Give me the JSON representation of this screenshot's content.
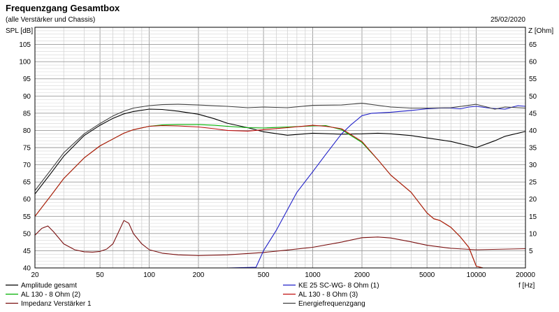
{
  "chart_data": {
    "type": "line",
    "title": "Frequenzgang Gesamtbox",
    "subtitle": "(alle Verstärker und Chassis)",
    "date": "25/02/2020",
    "ylabel": "SPL [dB]",
    "y2label": "Z [Ohm]",
    "xlabel": "f [Hz]",
    "xscale": "log",
    "xlim": [
      20,
      20000
    ],
    "ylim": [
      40,
      110
    ],
    "y2lim": [
      0,
      70
    ],
    "grid": true,
    "x_ticks": [
      20,
      50,
      100,
      200,
      500,
      1000,
      2000,
      5000,
      10000,
      20000
    ],
    "x_tick_labels": [
      "20",
      "50",
      "100",
      "200",
      "500",
      "1000",
      "2000",
      "5000",
      "10000",
      "20000"
    ],
    "y_ticks": [
      40,
      45,
      50,
      55,
      60,
      65,
      70,
      75,
      80,
      85,
      90,
      95,
      100,
      105
    ],
    "y_tick_labels": [
      "40",
      "45",
      "50",
      "55",
      "60",
      "65",
      "70",
      "75",
      "80",
      "85",
      "90",
      "95",
      "100",
      "105"
    ],
    "y2_ticks": [
      5,
      10,
      15,
      20,
      25,
      30,
      35,
      40,
      45,
      50,
      55,
      60,
      65
    ],
    "y2_tick_labels": [
      "5",
      "10",
      "15",
      "20",
      "25",
      "30",
      "35",
      "40",
      "45",
      "50",
      "55",
      "60",
      "65"
    ],
    "legend_position": "bottom",
    "series": [
      {
        "name": "Amplitude gesamt",
        "axis": "left",
        "color": "#000000",
        "x": [
          20,
          25,
          30,
          40,
          50,
          60,
          70,
          80,
          100,
          120,
          150,
          200,
          250,
          300,
          400,
          500,
          700,
          1000,
          1500,
          2000,
          2500,
          3000,
          4000,
          5000,
          7000,
          10000,
          13000,
          15000,
          20000
        ],
        "y": [
          61.5,
          67.5,
          72.5,
          78.5,
          81.5,
          83.5,
          84.8,
          85.5,
          86.2,
          86.1,
          85.6,
          84.7,
          83.4,
          82.1,
          80.8,
          79.6,
          78.6,
          79.2,
          78.9,
          79.0,
          79.2,
          79.0,
          78.5,
          77.8,
          76.8,
          75.0,
          77.0,
          78.3,
          79.7
        ]
      },
      {
        "name": "AL 130 - 8 Ohm (2)",
        "axis": "left",
        "color": "#00b000",
        "x": [
          20,
          25,
          30,
          40,
          50,
          60,
          70,
          80,
          100,
          120,
          150,
          200,
          250,
          300,
          400,
          500,
          700,
          1000,
          1200,
          1500,
          2000,
          2500,
          3000,
          4000,
          5000,
          5500,
          6000,
          7000,
          8000,
          9000,
          10000,
          11000,
          20000
        ],
        "y": [
          55,
          61,
          66,
          72,
          75.5,
          77.5,
          79.2,
          80.2,
          81.2,
          81.6,
          81.7,
          81.7,
          81.5,
          81.2,
          80.8,
          80.7,
          81.0,
          81.3,
          81.4,
          80.2,
          76.5,
          71.5,
          67.0,
          62.0,
          56.0,
          54.3,
          53.8,
          51.8,
          49.0,
          46.0,
          40.5,
          40.0,
          40.0
        ]
      },
      {
        "name": "Impedanz Verstärker 1",
        "axis": "right",
        "color": "#7a1010",
        "x": [
          20,
          22,
          24,
          26,
          30,
          35,
          40,
          45,
          50,
          55,
          60,
          65,
          70,
          75,
          80,
          90,
          100,
          120,
          150,
          200,
          300,
          500,
          700,
          1000,
          1500,
          2000,
          2500,
          3000,
          4000,
          5000,
          7000,
          10000,
          20000
        ],
        "y": [
          9.5,
          11.5,
          12.2,
          10.5,
          7,
          5.3,
          4.7,
          4.6,
          4.8,
          5.5,
          7.0,
          10.5,
          13.8,
          13.0,
          10.0,
          7.0,
          5.3,
          4.3,
          3.8,
          3.6,
          3.8,
          4.5,
          5.2,
          6.0,
          7.5,
          8.8,
          9.0,
          8.7,
          7.6,
          6.6,
          5.7,
          5.3,
          5.6
        ]
      },
      {
        "name": "KE 25 SC-WG- 8 Ohm   (1)",
        "axis": "left",
        "color": "#2020c8",
        "x": [
          20,
          300,
          450,
          500,
          600,
          800,
          1000,
          1200,
          1500,
          1700,
          2000,
          2300,
          3000,
          4000,
          5000,
          6000,
          7000,
          8000,
          9000,
          10000,
          12000,
          15000,
          18000,
          20000
        ],
        "y": [
          40,
          40,
          40.2,
          45,
          51,
          62,
          68,
          73,
          79,
          81.5,
          84.3,
          85.0,
          85.3,
          85.8,
          86.3,
          86.5,
          86.5,
          86.3,
          86.8,
          87.0,
          86.5,
          86.2,
          87.2,
          87.0
        ]
      },
      {
        "name": "AL 130 - 8 Ohm (3)",
        "axis": "left",
        "color": "#c01010",
        "x": [
          20,
          25,
          30,
          40,
          50,
          60,
          70,
          80,
          100,
          120,
          150,
          200,
          250,
          300,
          400,
          500,
          700,
          1000,
          1200,
          1500,
          2000,
          2500,
          3000,
          4000,
          5000,
          5500,
          6000,
          7000,
          8000,
          9000,
          10000,
          11000,
          20000
        ],
        "y": [
          55,
          61,
          66,
          72,
          75.5,
          77.5,
          79.2,
          80.2,
          81.2,
          81.4,
          81.3,
          81.0,
          80.5,
          80.0,
          79.8,
          80.2,
          80.8,
          81.5,
          81.2,
          80.5,
          76.8,
          71.5,
          67.0,
          62.0,
          56.0,
          54.3,
          53.8,
          51.8,
          49.0,
          46.0,
          40.5,
          40.0,
          40.0
        ]
      },
      {
        "name": "Energiefrequenzgang",
        "axis": "left",
        "color": "#404040",
        "x": [
          20,
          25,
          30,
          40,
          50,
          60,
          70,
          80,
          100,
          120,
          150,
          200,
          300,
          400,
          500,
          700,
          1000,
          1500,
          2000,
          3000,
          4000,
          5000,
          7000,
          10000,
          13000,
          15000,
          20000
        ],
        "y": [
          62.5,
          68.5,
          73.5,
          79,
          82,
          84.2,
          85.6,
          86.5,
          87.2,
          87.5,
          87.6,
          87.4,
          87.0,
          86.6,
          86.8,
          86.6,
          87.3,
          87.4,
          87.9,
          86.8,
          86.5,
          86.5,
          86.6,
          87.6,
          86.2,
          86.8,
          86.5
        ]
      }
    ]
  }
}
